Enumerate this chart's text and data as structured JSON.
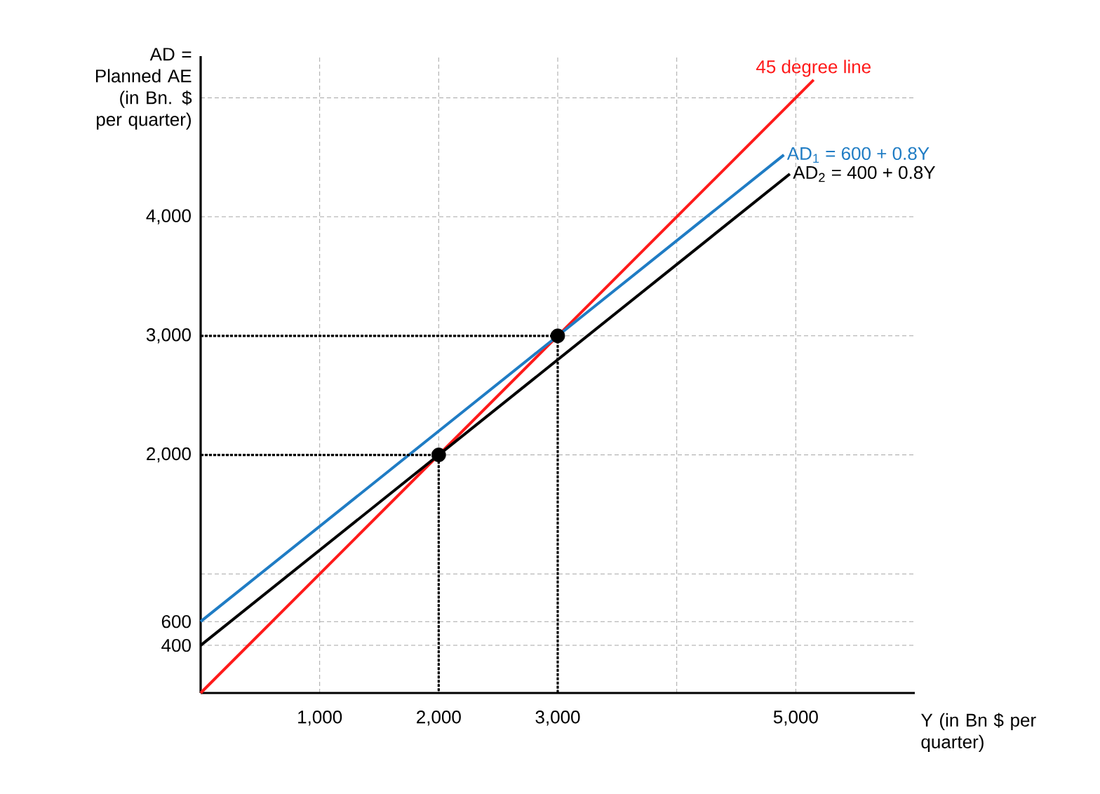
{
  "chart_data": {
    "type": "line",
    "xlabel": "Y (in Bn $ per quarter)",
    "ylabel": "AD = Planned AE (in Bn. $ per quarter)",
    "xlim": [
      0,
      6000
    ],
    "ylim": [
      0,
      5350
    ],
    "xticks": [
      {
        "value": 1000,
        "label": "1,000"
      },
      {
        "value": 2000,
        "label": "2,000"
      },
      {
        "value": 3000,
        "label": "3,000"
      },
      {
        "value": 4000,
        "label": null
      },
      {
        "value": 5000,
        "label": "5,000"
      }
    ],
    "yticks": [
      400,
      600,
      {
        "value": 1000,
        "label": null
      },
      {
        "value": 2000,
        "label": "2,000"
      },
      {
        "value": 3000,
        "label": "3,000"
      },
      {
        "value": 4000,
        "label": "4,000"
      },
      {
        "value": 5000,
        "label": null
      }
    ],
    "grid": true,
    "series": [
      {
        "name": "45 degree line",
        "color": "#ff1a1a",
        "x": [
          0,
          5150
        ],
        "values": [
          0,
          5150
        ]
      },
      {
        "name": "AD$_{1}$ = 600 + 0.8Y",
        "color": "#1f7cc4",
        "x": [
          0,
          4900
        ],
        "values": [
          600,
          4520
        ]
      },
      {
        "name": "AD$_{2}$ = 400 + 0.8Y",
        "color": "#000000",
        "x": [
          0,
          4950
        ],
        "values": [
          400,
          4360
        ]
      },
      {
        "color": "#000000",
        "line_style": "dotted",
        "x": [
          0,
          2000,
          2000
        ],
        "values": [
          2000,
          2000,
          0
        ]
      },
      {
        "color": "#000000",
        "line_style": "dotted",
        "x": [
          0,
          3000,
          3000
        ],
        "values": [
          3000,
          3000,
          0
        ]
      },
      {
        "type": "scatter",
        "marker": "circle",
        "color": "#000000",
        "x": [
          2000,
          3000
        ],
        "values": [
          2000,
          3000
        ]
      }
    ]
  }
}
